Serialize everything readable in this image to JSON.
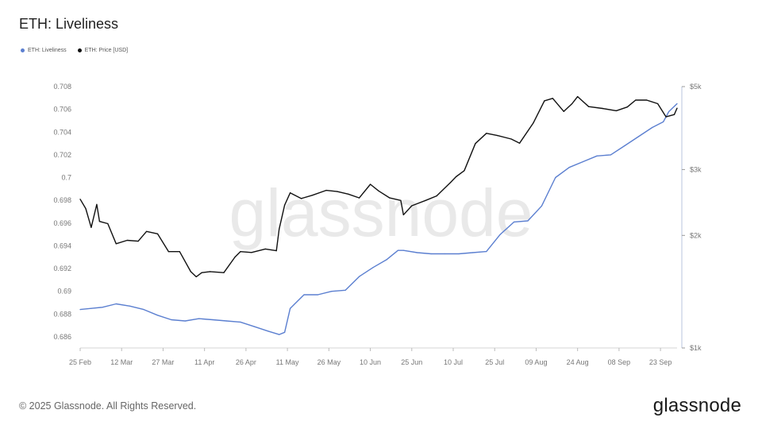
{
  "title": "ETH: Liveliness",
  "legend": [
    {
      "label": "ETH: Liveliness",
      "color": "#5b7fd0"
    },
    {
      "label": "ETH: Price [USD]",
      "color": "#111111"
    }
  ],
  "footer": "© 2025 Glassnode. All Rights Reserved.",
  "brand": "glassnode",
  "watermark": "glassnode",
  "chart_data": {
    "type": "line",
    "title": "ETH: Liveliness",
    "xlabel": "",
    "ylabel": "",
    "x_range": [
      "2025-02-25",
      "2025-09-29"
    ],
    "x_ticks": [
      "25 Feb",
      "12 Mar",
      "27 Mar",
      "11 Apr",
      "26 Apr",
      "11 May",
      "26 May",
      "10 Jun",
      "25 Jun",
      "10 Jul",
      "25 Jul",
      "09 Aug",
      "24 Aug",
      "08 Sep",
      "23 Sep"
    ],
    "left_axis": {
      "ticks": [
        "0.686",
        "0.688",
        "0.69",
        "0.692",
        "0.694",
        "0.696",
        "0.698",
        "0.7",
        "0.702",
        "0.704",
        "0.706",
        "0.708"
      ],
      "ylim": [
        0.685,
        0.708
      ]
    },
    "right_axis": {
      "scale": "log",
      "ticks": [
        {
          "value": 1000,
          "label": "$1k"
        },
        {
          "value": 2000,
          "label": "$2k"
        },
        {
          "value": 3000,
          "label": "$3k"
        },
        {
          "value": 5000,
          "label": "$5k"
        }
      ],
      "ylim": [
        1000,
        5000
      ]
    },
    "series": [
      {
        "name": "ETH: Liveliness",
        "axis": "left",
        "color": "#5b7fd0",
        "x": [
          "2025-02-25",
          "2025-03-01",
          "2025-03-05",
          "2025-03-10",
          "2025-03-15",
          "2025-03-20",
          "2025-03-25",
          "2025-03-30",
          "2025-04-04",
          "2025-04-09",
          "2025-04-14",
          "2025-04-19",
          "2025-04-24",
          "2025-04-29",
          "2025-05-04",
          "2025-05-08",
          "2025-05-10",
          "2025-05-12",
          "2025-05-17",
          "2025-05-22",
          "2025-05-27",
          "2025-06-01",
          "2025-06-06",
          "2025-06-11",
          "2025-06-16",
          "2025-06-20",
          "2025-06-22",
          "2025-06-27",
          "2025-07-02",
          "2025-07-07",
          "2025-07-12",
          "2025-07-17",
          "2025-07-22",
          "2025-07-27",
          "2025-08-01",
          "2025-08-06",
          "2025-08-11",
          "2025-08-16",
          "2025-08-21",
          "2025-08-26",
          "2025-08-31",
          "2025-09-05",
          "2025-09-10",
          "2025-09-15",
          "2025-09-20",
          "2025-09-24",
          "2025-09-26",
          "2025-09-29"
        ],
        "y": [
          0.6884,
          0.6885,
          0.6886,
          0.6889,
          0.6887,
          0.6884,
          0.6879,
          0.6875,
          0.6874,
          0.6876,
          0.6875,
          0.6874,
          0.6873,
          0.6869,
          0.6865,
          0.6862,
          0.6864,
          0.6885,
          0.6897,
          0.6897,
          0.69,
          0.6901,
          0.6913,
          0.6921,
          0.6928,
          0.6936,
          0.6936,
          0.6934,
          0.6933,
          0.6933,
          0.6933,
          0.6934,
          0.6935,
          0.695,
          0.6961,
          0.6962,
          0.6975,
          0.7,
          0.7009,
          0.7014,
          0.7019,
          0.702,
          0.7028,
          0.7036,
          0.7044,
          0.7049,
          0.7058,
          0.7065
        ]
      },
      {
        "name": "ETH: Price [USD]",
        "axis": "right",
        "color": "#111111",
        "x": [
          "2025-02-25",
          "2025-02-27",
          "2025-03-01",
          "2025-03-03",
          "2025-03-04",
          "2025-03-07",
          "2025-03-10",
          "2025-03-14",
          "2025-03-18",
          "2025-03-21",
          "2025-03-25",
          "2025-03-29",
          "2025-04-02",
          "2025-04-06",
          "2025-04-08",
          "2025-04-10",
          "2025-04-13",
          "2025-04-18",
          "2025-04-22",
          "2025-04-24",
          "2025-04-28",
          "2025-05-03",
          "2025-05-07",
          "2025-05-08",
          "2025-05-10",
          "2025-05-12",
          "2025-05-16",
          "2025-05-20",
          "2025-05-25",
          "2025-05-29",
          "2025-06-02",
          "2025-06-06",
          "2025-06-10",
          "2025-06-13",
          "2025-06-17",
          "2025-06-21",
          "2025-06-22",
          "2025-06-25",
          "2025-06-30",
          "2025-07-04",
          "2025-07-09",
          "2025-07-11",
          "2025-07-14",
          "2025-07-18",
          "2025-07-22",
          "2025-07-26",
          "2025-07-31",
          "2025-08-03",
          "2025-08-08",
          "2025-08-12",
          "2025-08-15",
          "2025-08-19",
          "2025-08-22",
          "2025-08-24",
          "2025-08-28",
          "2025-09-02",
          "2025-09-07",
          "2025-09-11",
          "2025-09-14",
          "2025-09-18",
          "2025-09-22",
          "2025-09-25",
          "2025-09-28",
          "2025-09-29"
        ],
        "y": [
          2500,
          2360,
          2100,
          2420,
          2180,
          2150,
          1900,
          1940,
          1930,
          2050,
          2020,
          1810,
          1810,
          1600,
          1550,
          1590,
          1600,
          1590,
          1750,
          1810,
          1800,
          1840,
          1820,
          2080,
          2410,
          2600,
          2510,
          2560,
          2640,
          2620,
          2580,
          2520,
          2740,
          2630,
          2520,
          2480,
          2270,
          2400,
          2480,
          2550,
          2770,
          2870,
          2980,
          3520,
          3750,
          3700,
          3620,
          3530,
          4000,
          4580,
          4650,
          4290,
          4500,
          4700,
          4420,
          4370,
          4310,
          4410,
          4600,
          4600,
          4500,
          4150,
          4210,
          4380
        ]
      }
    ]
  }
}
